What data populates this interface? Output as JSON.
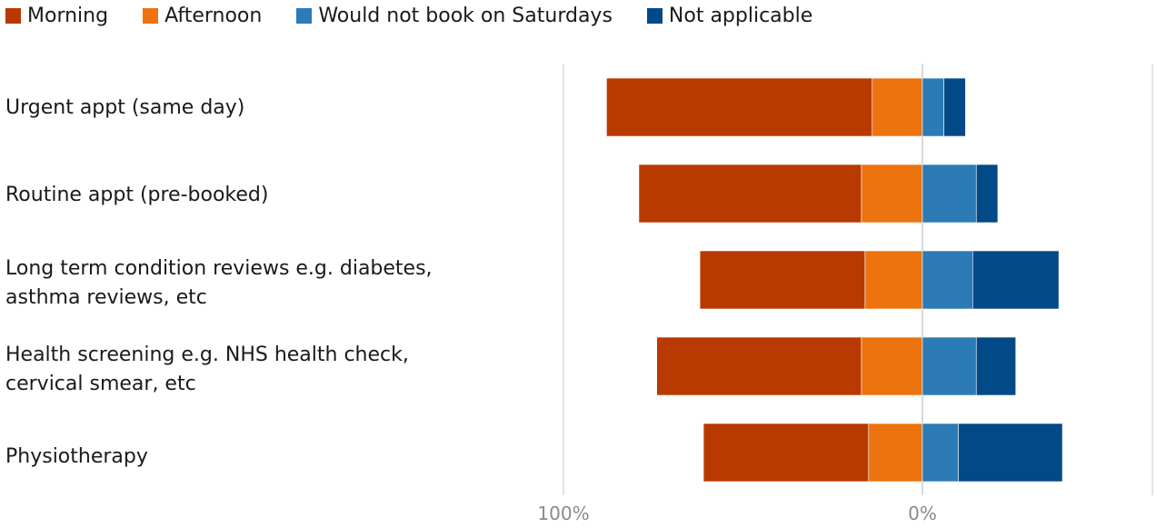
{
  "chart_data": {
    "type": "bar",
    "orientation": "horizontal-diverging",
    "legend_position": "top-left",
    "series": [
      {
        "name": "Morning",
        "color": "#b83a00",
        "side": "left"
      },
      {
        "name": "Afternoon",
        "color": "#ec730e",
        "side": "left"
      },
      {
        "name": "Would not book on Saturdays",
        "color": "#2c7bb6",
        "side": "right"
      },
      {
        "name": "Not applicable",
        "color": "#024a87",
        "side": "right"
      }
    ],
    "categories": [
      "Urgent appt (same day)",
      "Routine appt (pre-booked)",
      "Long term condition reviews e.g. diabetes, asthma reviews, etc",
      "Health screening e.g. NHS health check, cervical smear, etc",
      "Physiotherapy"
    ],
    "values": {
      "Morning": [
        74,
        62,
        46,
        57,
        46
      ],
      "Afternoon": [
        14,
        17,
        16,
        17,
        15
      ],
      "Would not book on Saturdays": [
        6,
        15,
        14,
        15,
        10
      ],
      "Not applicable": [
        6,
        6,
        24,
        11,
        29
      ]
    },
    "x_tick_labels": [
      "100%",
      "0%"
    ],
    "xlim": [
      -100,
      64
    ]
  },
  "legend": {
    "morning": "Morning",
    "afternoon": "Afternoon",
    "would_not": "Would not book on Saturdays",
    "not_applicable": "Not applicable"
  },
  "labels": {
    "cat0": "Urgent appt (same day)",
    "cat1": "Routine appt (pre-booked)",
    "cat2": "Long term condition reviews e.g. diabetes, asthma reviews, etc",
    "cat3": "Health screening e.g. NHS health check, cervical smear, etc",
    "cat4": "Physiotherapy"
  },
  "ticks": {
    "left": "100%",
    "zero": "0%"
  }
}
